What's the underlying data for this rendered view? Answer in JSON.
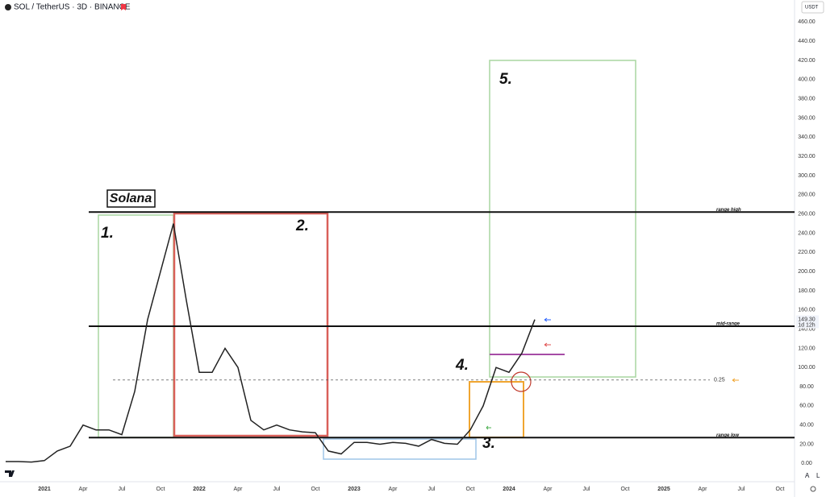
{
  "header": {
    "symbol": "SOL / TetherUS · 3D · BINANCE",
    "currency": "USDT",
    "scale_auto": "A",
    "scale_log": "L"
  },
  "chart_data": {
    "type": "line",
    "title": "Solana",
    "x": [
      "2020-10",
      "2020-11",
      "2020-12",
      "2021-01",
      "2021-02",
      "2021-03",
      "2021-04",
      "2021-05",
      "2021-06",
      "2021-07",
      "2021-08",
      "2021-09",
      "2021-10",
      "2021-11",
      "2021-12",
      "2022-01",
      "2022-02",
      "2022-03",
      "2022-04",
      "2022-05",
      "2022-06",
      "2022-07",
      "2022-08",
      "2022-09",
      "2022-10",
      "2022-11",
      "2022-12",
      "2023-01",
      "2023-02",
      "2023-03",
      "2023-04",
      "2023-05",
      "2023-06",
      "2023-07",
      "2023-08",
      "2023-09",
      "2023-10",
      "2023-11",
      "2023-12",
      "2024-01",
      "2024-02",
      "2024-03"
    ],
    "series": [
      {
        "name": "SOL / TetherUS",
        "color": "#222222",
        "values": [
          2,
          2,
          1.5,
          3,
          13,
          18,
          40,
          35,
          35,
          30,
          75,
          150,
          200,
          250,
          170,
          95,
          95,
          120,
          100,
          45,
          35,
          40,
          35,
          33,
          32,
          13,
          10,
          22,
          22,
          20,
          22,
          21,
          18,
          25,
          21,
          20,
          35,
          60,
          100,
          95,
          115,
          150
        ]
      }
    ],
    "xlim": [
      "2020-10",
      "2025-10"
    ],
    "xticks": [
      {
        "value": "2021-01",
        "label": "2021"
      },
      {
        "value": "2021-04",
        "label": "Apr"
      },
      {
        "value": "2021-07",
        "label": "Jul"
      },
      {
        "value": "2021-10",
        "label": "Oct"
      },
      {
        "value": "2022-01",
        "label": "2022"
      },
      {
        "value": "2022-04",
        "label": "Apr"
      },
      {
        "value": "2022-07",
        "label": "Jul"
      },
      {
        "value": "2022-10",
        "label": "Oct"
      },
      {
        "value": "2023-01",
        "label": "2023"
      },
      {
        "value": "2023-04",
        "label": "Apr"
      },
      {
        "value": "2023-07",
        "label": "Jul"
      },
      {
        "value": "2023-10",
        "label": "Oct"
      },
      {
        "value": "2024-01",
        "label": "2024"
      },
      {
        "value": "2024-04",
        "label": "Apr"
      },
      {
        "value": "2024-07",
        "label": "Jul"
      },
      {
        "value": "2024-10",
        "label": "Oct"
      },
      {
        "value": "2025-01",
        "label": "2025"
      },
      {
        "value": "2025-04",
        "label": "Apr"
      },
      {
        "value": "2025-07",
        "label": "Jul"
      },
      {
        "value": "2025-10",
        "label": "Oct"
      }
    ],
    "ylim": [
      -19,
      483
    ],
    "yticks": [
      {
        "value": 0,
        "label": "0.00"
      },
      {
        "value": 20,
        "label": "20.00"
      },
      {
        "value": 40,
        "label": "40.00"
      },
      {
        "value": 60,
        "label": "60.00"
      },
      {
        "value": 80,
        "label": "80.00"
      },
      {
        "value": 100,
        "label": "100.00"
      },
      {
        "value": 120,
        "label": "120.00"
      },
      {
        "value": 140,
        "label": "140.00"
      },
      {
        "value": 160,
        "label": "160.00"
      },
      {
        "value": 180,
        "label": "180.00"
      },
      {
        "value": 200,
        "label": "200.00"
      },
      {
        "value": 220,
        "label": "220.00"
      },
      {
        "value": 240,
        "label": "240.00"
      },
      {
        "value": 260,
        "label": "260.00"
      },
      {
        "value": 280,
        "label": "280.00"
      },
      {
        "value": 300,
        "label": "300.00"
      },
      {
        "value": 320,
        "label": "320.00"
      },
      {
        "value": 340,
        "label": "340.00"
      },
      {
        "value": 360,
        "label": "360.00"
      },
      {
        "value": 380,
        "label": "380.00"
      },
      {
        "value": 400,
        "label": "400.00"
      },
      {
        "value": 420,
        "label": "420.00"
      },
      {
        "value": 440,
        "label": "440.00"
      },
      {
        "value": 460,
        "label": "460.00"
      }
    ],
    "grid": false,
    "last_price": {
      "value": 149.3,
      "label": "149.30"
    },
    "countdown": "1d 12h",
    "levels": [
      {
        "label": "range high",
        "value": 262
      },
      {
        "label": "mid-range",
        "value": 143
      },
      {
        "label": "0.25",
        "value": 87
      },
      {
        "label": "range low",
        "value": 27
      }
    ],
    "box_labels": [
      "1.",
      "2.",
      "3.",
      "4.",
      "5."
    ]
  }
}
